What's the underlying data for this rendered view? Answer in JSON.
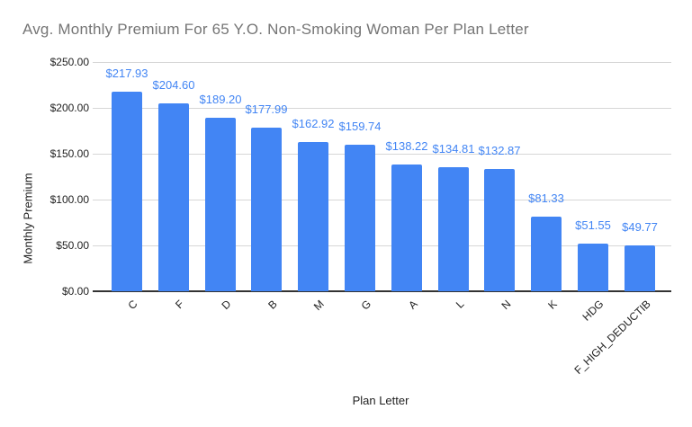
{
  "chart_data": {
    "type": "bar",
    "title": "Avg. Monthly Premium For 65 Y.O. Non-Smoking Woman Per Plan Letter",
    "xlabel": "Plan Letter",
    "ylabel": "Monthly Premium",
    "categories": [
      "C",
      "F",
      "D",
      "B",
      "M",
      "G",
      "A",
      "L",
      "N",
      "K",
      "HDG",
      "F_HIGH_DEDUCTIB"
    ],
    "values": [
      217.93,
      204.6,
      189.2,
      177.99,
      162.92,
      159.74,
      138.22,
      134.81,
      132.87,
      81.33,
      51.55,
      49.77
    ],
    "value_labels": [
      "$217.93",
      "$204.60",
      "$189.20",
      "$177.99",
      "$162.92",
      "$159.74",
      "$138.22",
      "$134.81",
      "$132.87",
      "$81.33",
      "$51.55",
      "$49.77"
    ],
    "ylim": [
      0,
      250
    ],
    "y_ticks": [
      0,
      50,
      100,
      150,
      200,
      250
    ],
    "y_tick_labels": [
      "$0.00",
      "$50.00",
      "$100.00",
      "$150.00",
      "$200.00",
      "$250.00"
    ],
    "grid": true,
    "legend_position": "none",
    "colors": {
      "bar": "#4285f4",
      "value_label": "#4285f4",
      "title": "#757575",
      "axis_text": "#1f1f1f",
      "gridline": "#d6d6d6",
      "baseline": "#333333",
      "background": "#ffffff"
    }
  }
}
